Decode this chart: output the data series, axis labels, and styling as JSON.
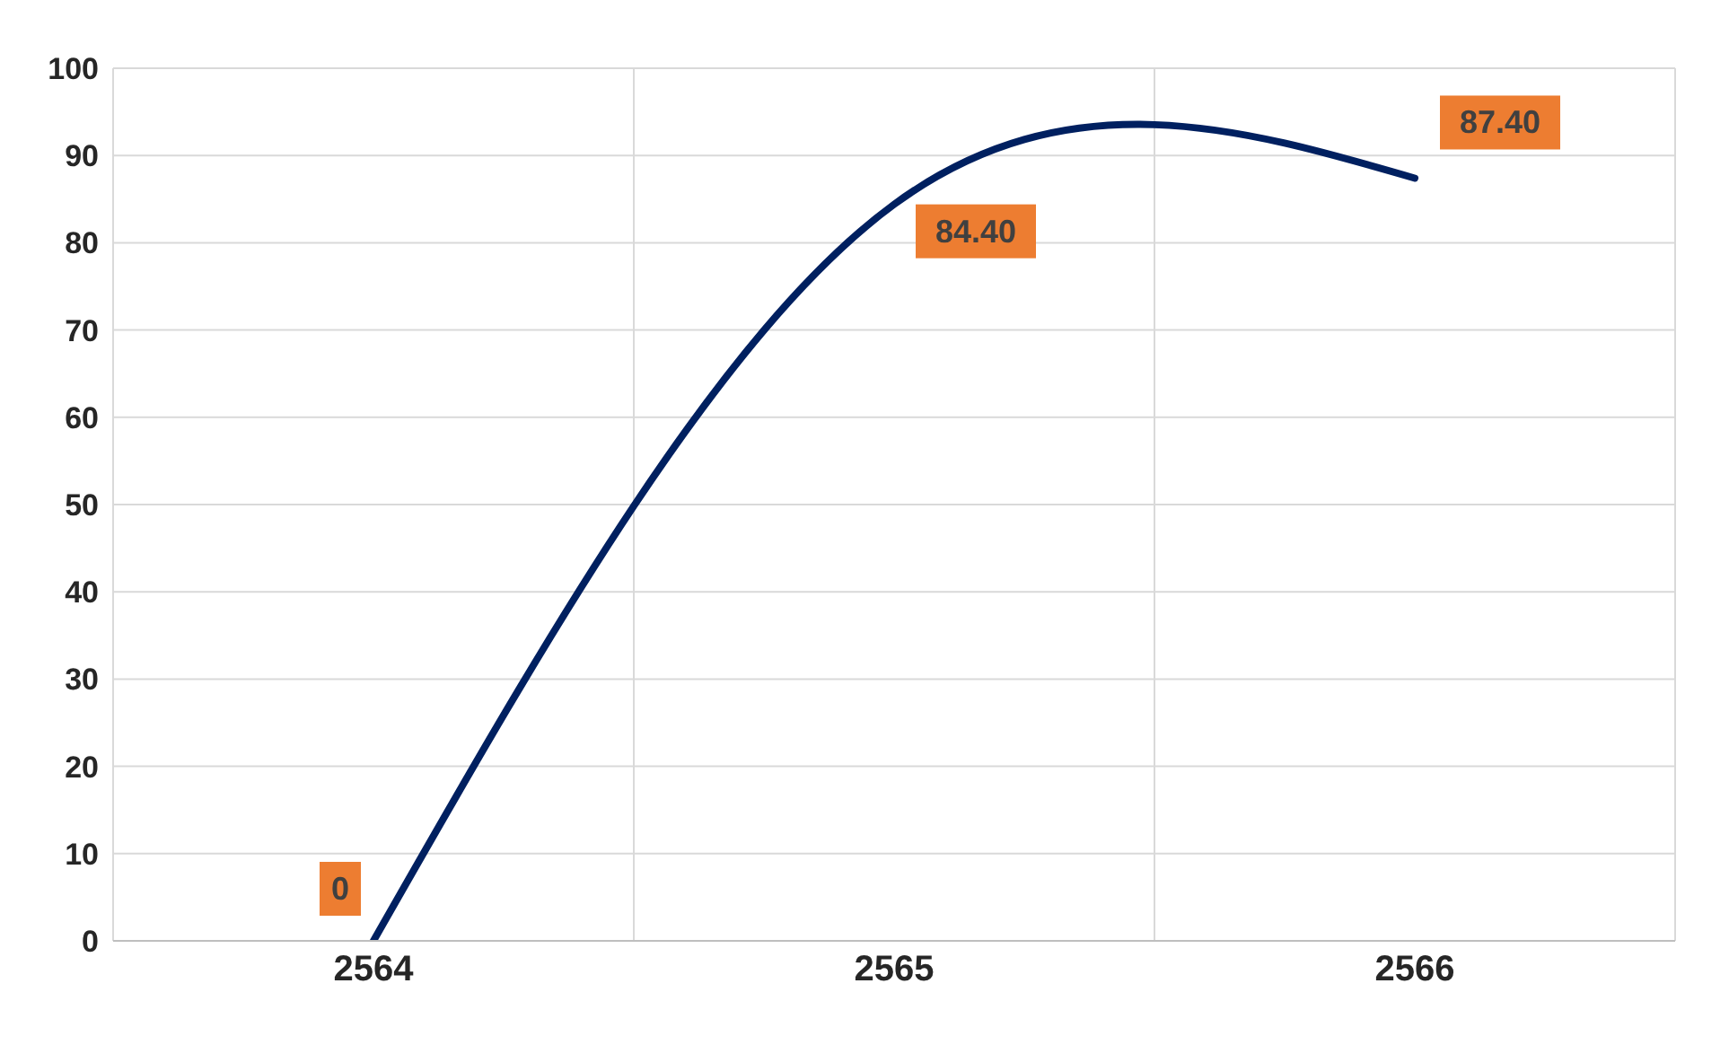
{
  "chart_data": {
    "type": "line",
    "categories": [
      "2564",
      "2565",
      "2566"
    ],
    "series": [
      {
        "color": "#002060",
        "values": [
          0,
          84.4,
          87.4
        ],
        "value_labels": [
          "0",
          "84.40",
          "87.40"
        ]
      }
    ],
    "ylim": [
      0,
      100
    ],
    "yticks": [
      0,
      10,
      20,
      30,
      40,
      50,
      60,
      70,
      80,
      90,
      100
    ],
    "grid": true,
    "legend": false,
    "marker": "none",
    "line_style": "solid"
  }
}
